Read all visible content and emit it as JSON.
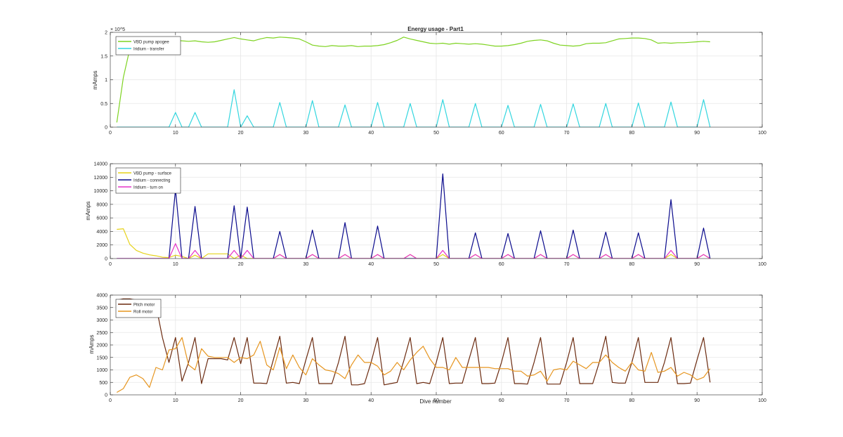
{
  "figure": {
    "background": "#ffffff",
    "axis_color": "#262626",
    "grid_color": "#e6e6e6"
  },
  "chart_data": [
    {
      "type": "line",
      "title": "Energy usage - Part1",
      "xlabel": "",
      "ylabel": "mAmps",
      "xlim": [
        0,
        100
      ],
      "ylim": [
        0,
        200000
      ],
      "xticks": [
        0,
        10,
        20,
        30,
        40,
        50,
        60,
        70,
        80,
        90,
        100
      ],
      "yticks": [
        0,
        50000,
        100000,
        150000,
        200000
      ],
      "ytick_labels": [
        "0",
        "0.5",
        "1",
        "1.5",
        "2"
      ],
      "exponent_label": "× 10^5",
      "grid": true,
      "legend_placement": "top-left",
      "series": [
        {
          "name": "VBD pump apogee",
          "color": "#7ed321",
          "x": [
            1,
            2,
            3,
            4,
            5,
            6,
            7,
            8,
            9,
            10,
            11,
            12,
            13,
            14,
            15,
            16,
            17,
            18,
            19,
            20,
            21,
            22,
            23,
            24,
            25,
            26,
            27,
            28,
            29,
            30,
            31,
            32,
            33,
            34,
            35,
            36,
            37,
            38,
            39,
            40,
            41,
            42,
            43,
            44,
            45,
            46,
            47,
            48,
            49,
            50,
            51,
            52,
            53,
            54,
            55,
            56,
            57,
            58,
            59,
            60,
            61,
            62,
            63,
            64,
            65,
            66,
            67,
            68,
            69,
            70,
            71,
            72,
            73,
            74,
            75,
            76,
            77,
            78,
            79,
            80,
            81,
            82,
            83,
            84,
            85,
            86,
            87,
            88,
            89,
            90,
            91,
            92
          ],
          "y": [
            10000,
            105000,
            165000,
            180000,
            183000,
            183000,
            182000,
            181000,
            182000,
            183000,
            182000,
            181000,
            182000,
            180000,
            179000,
            180000,
            183000,
            186000,
            189000,
            186000,
            184000,
            182000,
            186000,
            189000,
            188000,
            190000,
            189000,
            188000,
            186000,
            180000,
            173000,
            171000,
            170000,
            172000,
            171000,
            171000,
            172000,
            170000,
            171000,
            171000,
            172000,
            174000,
            178000,
            183000,
            190000,
            186000,
            183000,
            180000,
            177000,
            176000,
            177000,
            175000,
            177000,
            176000,
            175000,
            176000,
            175000,
            173000,
            171000,
            171000,
            172000,
            174000,
            177000,
            181000,
            183000,
            184000,
            182000,
            177000,
            173000,
            172000,
            171000,
            172000,
            176000,
            177000,
            177000,
            178000,
            182000,
            186000,
            187000,
            188000,
            188000,
            187000,
            184000,
            177000,
            178000,
            177000,
            178000,
            178000,
            179000,
            180000,
            181000,
            180000
          ]
        },
        {
          "name": "Iridium - transfer",
          "color": "#33d6df",
          "x": [
            1,
            9,
            10,
            11,
            12,
            13,
            14,
            18,
            19,
            20,
            21,
            22,
            25,
            26,
            27,
            30,
            31,
            32,
            35,
            36,
            37,
            40,
            41,
            42,
            45,
            46,
            47,
            50,
            51,
            52,
            55,
            56,
            57,
            60,
            61,
            62,
            65,
            66,
            67,
            70,
            71,
            72,
            75,
            76,
            77,
            80,
            81,
            82,
            85,
            86,
            87,
            90,
            91,
            92
          ],
          "y": [
            0,
            0,
            31000,
            0,
            0,
            31000,
            0,
            0,
            79000,
            0,
            24000,
            0,
            0,
            52000,
            0,
            0,
            56000,
            0,
            0,
            47000,
            0,
            0,
            52000,
            0,
            0,
            50000,
            0,
            0,
            58000,
            0,
            0,
            50000,
            0,
            0,
            46000,
            0,
            0,
            48000,
            0,
            0,
            49000,
            0,
            0,
            50000,
            0,
            0,
            51000,
            0,
            0,
            53000,
            0,
            0,
            58000,
            0
          ]
        }
      ]
    },
    {
      "type": "line",
      "title": "",
      "xlabel": "",
      "ylabel": "mAmps",
      "xlim": [
        0,
        100
      ],
      "ylim": [
        0,
        14000
      ],
      "xticks": [
        0,
        10,
        20,
        30,
        40,
        50,
        60,
        70,
        80,
        90,
        100
      ],
      "yticks": [
        0,
        2000,
        4000,
        6000,
        8000,
        10000,
        12000,
        14000
      ],
      "ytick_labels": [
        "0",
        "2000",
        "4000",
        "6000",
        "8000",
        "10000",
        "12000",
        "14000"
      ],
      "grid": true,
      "legend_placement": "top-left",
      "series": [
        {
          "name": "VBD pump - surface",
          "color": "#e6d21a",
          "x": [
            1,
            2,
            3,
            4,
            5,
            6,
            7,
            8,
            9,
            10,
            11,
            12,
            13,
            14,
            15,
            16,
            17,
            18,
            19,
            20,
            21,
            22,
            25,
            26,
            27,
            30,
            31,
            32,
            35,
            36,
            37,
            40,
            41,
            42,
            45,
            46,
            47,
            50,
            51,
            52,
            55,
            56,
            57,
            60,
            61,
            62,
            65,
            66,
            67,
            70,
            71,
            72,
            75,
            76,
            77,
            80,
            81,
            82,
            85,
            86,
            87,
            90,
            91,
            92
          ],
          "y": [
            4300,
            4400,
            2100,
            1200,
            800,
            550,
            400,
            200,
            150,
            500,
            300,
            0,
            500,
            0,
            700,
            700,
            700,
            700,
            0,
            500,
            0,
            0,
            0,
            600,
            0,
            0,
            600,
            0,
            0,
            600,
            0,
            0,
            600,
            0,
            0,
            600,
            0,
            0,
            600,
            0,
            0,
            600,
            0,
            0,
            600,
            0,
            0,
            600,
            0,
            0,
            600,
            0,
            0,
            600,
            0,
            0,
            600,
            0,
            0,
            600,
            0,
            0,
            600,
            0
          ]
        },
        {
          "name": "Iridium - connecting",
          "color": "#0a0a8c",
          "x": [
            1,
            9,
            10,
            11,
            12,
            13,
            14,
            18,
            19,
            20,
            21,
            22,
            25,
            26,
            27,
            30,
            31,
            32,
            35,
            36,
            37,
            40,
            41,
            42,
            50,
            51,
            52,
            55,
            56,
            57,
            60,
            61,
            62,
            65,
            66,
            67,
            70,
            71,
            72,
            75,
            76,
            77,
            80,
            81,
            82,
            85,
            86,
            87,
            90,
            91,
            92
          ],
          "y": [
            0,
            0,
            10200,
            0,
            0,
            7700,
            0,
            0,
            7800,
            0,
            7600,
            0,
            0,
            4000,
            0,
            0,
            4200,
            0,
            0,
            5300,
            0,
            0,
            4800,
            0,
            0,
            12500,
            0,
            0,
            3800,
            0,
            0,
            3700,
            0,
            0,
            4100,
            0,
            0,
            4200,
            0,
            0,
            3900,
            0,
            0,
            3800,
            0,
            0,
            8700,
            0,
            0,
            4500,
            0
          ]
        },
        {
          "name": "Iridium - turn on",
          "color": "#e633c8",
          "x": [
            1,
            9,
            10,
            11,
            12,
            13,
            14,
            18,
            19,
            20,
            21,
            22,
            25,
            26,
            27,
            30,
            31,
            32,
            35,
            36,
            37,
            40,
            41,
            42,
            45,
            46,
            47,
            50,
            51,
            52,
            55,
            56,
            57,
            60,
            61,
            62,
            65,
            66,
            67,
            70,
            71,
            72,
            75,
            76,
            77,
            80,
            81,
            82,
            85,
            86,
            87,
            90,
            91,
            92
          ],
          "y": [
            0,
            0,
            2200,
            0,
            0,
            1200,
            0,
            0,
            1200,
            0,
            1200,
            0,
            0,
            600,
            0,
            0,
            600,
            0,
            0,
            600,
            0,
            0,
            600,
            0,
            0,
            600,
            0,
            0,
            1200,
            0,
            0,
            600,
            0,
            0,
            600,
            0,
            0,
            600,
            0,
            0,
            600,
            0,
            0,
            600,
            0,
            0,
            600,
            0,
            0,
            1200,
            0,
            0,
            600,
            0
          ]
        }
      ]
    },
    {
      "type": "line",
      "title": "",
      "xlabel": "Dive number",
      "ylabel": "mAmps",
      "xlim": [
        0,
        100
      ],
      "ylim": [
        0,
        4000
      ],
      "xticks": [
        0,
        10,
        20,
        30,
        40,
        50,
        60,
        70,
        80,
        90,
        100
      ],
      "yticks": [
        0,
        500,
        1000,
        1500,
        2000,
        2500,
        3000,
        3500,
        4000
      ],
      "ytick_labels": [
        "0",
        "500",
        "1000",
        "1500",
        "2000",
        "2500",
        "3000",
        "3500",
        "4000"
      ],
      "grid": true,
      "legend_placement": "top-left",
      "series": [
        {
          "name": "Pitch motor",
          "color": "#6b2a0f",
          "x": [
            1,
            2,
            3,
            4,
            5,
            6,
            7,
            8,
            9,
            10,
            11,
            12,
            13,
            14,
            15,
            16,
            17,
            18,
            19,
            20,
            21,
            22,
            23,
            24,
            25,
            26,
            27,
            28,
            29,
            30,
            31,
            32,
            33,
            34,
            35,
            36,
            37,
            38,
            39,
            40,
            41,
            42,
            43,
            44,
            45,
            46,
            47,
            48,
            49,
            50,
            51,
            52,
            53,
            54,
            55,
            56,
            57,
            58,
            59,
            60,
            61,
            62,
            63,
            64,
            65,
            66,
            67,
            68,
            69,
            70,
            71,
            72,
            73,
            74,
            75,
            76,
            77,
            78,
            79,
            80,
            81,
            82,
            83,
            84,
            85,
            86,
            87,
            88,
            89,
            90,
            91,
            92
          ],
          "y": [
            3800,
            3850,
            3850,
            3800,
            3750,
            3700,
            3600,
            2300,
            1300,
            2300,
            550,
            1300,
            2300,
            450,
            1450,
            1450,
            1450,
            1400,
            2300,
            1250,
            2300,
            470,
            470,
            450,
            1400,
            2350,
            470,
            500,
            450,
            1400,
            2300,
            450,
            450,
            450,
            1300,
            2350,
            400,
            400,
            450,
            1300,
            2300,
            400,
            450,
            500,
            1350,
            2300,
            450,
            500,
            450,
            1300,
            2300,
            450,
            470,
            470,
            1400,
            2300,
            450,
            450,
            470,
            1300,
            2300,
            450,
            450,
            430,
            1300,
            2300,
            430,
            430,
            430,
            1300,
            2300,
            450,
            450,
            450,
            1300,
            2350,
            500,
            470,
            470,
            1300,
            2300,
            500,
            500,
            500,
            1300,
            2300,
            450,
            450,
            470,
            1400,
            2300,
            500
          ]
        },
        {
          "name": "Roll motor",
          "color": "#e6951f",
          "x": [
            1,
            2,
            3,
            4,
            5,
            6,
            7,
            8,
            9,
            10,
            11,
            12,
            13,
            14,
            15,
            16,
            17,
            18,
            19,
            20,
            21,
            22,
            23,
            24,
            25,
            26,
            27,
            28,
            29,
            30,
            31,
            32,
            33,
            34,
            35,
            36,
            37,
            38,
            39,
            40,
            41,
            42,
            43,
            44,
            45,
            46,
            47,
            48,
            49,
            50,
            51,
            52,
            53,
            54,
            55,
            56,
            57,
            58,
            59,
            60,
            61,
            62,
            63,
            64,
            65,
            66,
            67,
            68,
            69,
            70,
            71,
            72,
            73,
            74,
            75,
            76,
            77,
            78,
            79,
            80,
            81,
            82,
            83,
            84,
            85,
            86,
            87,
            88,
            89,
            90,
            91,
            92
          ],
          "y": [
            100,
            250,
            700,
            800,
            650,
            300,
            1100,
            1000,
            1800,
            1850,
            2300,
            1200,
            1000,
            1850,
            1550,
            1500,
            1500,
            1500,
            1300,
            1500,
            1450,
            1600,
            2150,
            1200,
            1000,
            1900,
            1050,
            1600,
            1100,
            800,
            1450,
            1200,
            1000,
            950,
            850,
            650,
            1200,
            1600,
            1300,
            1300,
            1150,
            800,
            950,
            1300,
            1000,
            1400,
            1700,
            1950,
            1450,
            1100,
            1100,
            1000,
            1500,
            1100,
            1100,
            1100,
            1100,
            1100,
            1050,
            1050,
            1050,
            950,
            950,
            750,
            800,
            950,
            550,
            1000,
            1050,
            1000,
            1350,
            1200,
            1050,
            1300,
            1300,
            1600,
            1300,
            1100,
            950,
            1300,
            1000,
            950,
            1700,
            900,
            950,
            1100,
            750,
            900,
            800,
            600,
            700,
            1050
          ]
        }
      ]
    }
  ]
}
